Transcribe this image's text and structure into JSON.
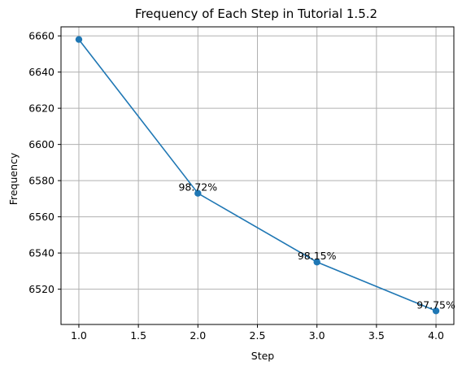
{
  "chart_data": {
    "type": "line",
    "title": "Frequency of Each Step in Tutorial 1.5.2",
    "xlabel": "Step",
    "ylabel": "Frequency",
    "x": [
      1,
      2,
      3,
      4
    ],
    "series": [
      {
        "values": [
          6658,
          6573,
          6535,
          6508
        ],
        "labels": [
          "",
          "98.72%",
          "98.15%",
          "97.75%"
        ],
        "color": "#1f77b4",
        "marker": "circle"
      }
    ],
    "xlim": [
      0.85,
      4.15
    ],
    "ylim": [
      6500.5,
      6665.0
    ],
    "xticks": [
      1.0,
      1.5,
      2.0,
      2.5,
      3.0,
      3.5,
      4.0
    ],
    "xtick_labels": [
      "1.0",
      "1.5",
      "2.0",
      "2.5",
      "3.0",
      "3.5",
      "4.0"
    ],
    "yticks": [
      6520,
      6540,
      6560,
      6580,
      6600,
      6620,
      6640,
      6660
    ],
    "ytick_labels": [
      "6520",
      "6540",
      "6560",
      "6580",
      "6600",
      "6620",
      "6640",
      "6660"
    ],
    "grid": true,
    "legend": "none"
  }
}
